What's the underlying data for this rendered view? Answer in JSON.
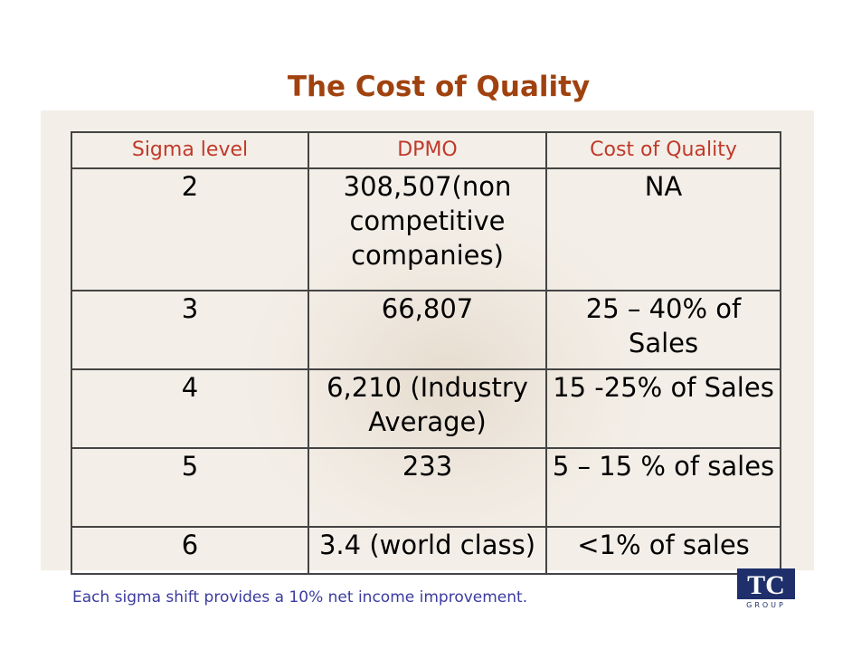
{
  "title": "The Cost of Quality",
  "table": {
    "header": [
      "Sigma level",
      "DPMO",
      "Cost of Quality"
    ],
    "rows": [
      [
        "2",
        "308,507(non competitive companies)",
        "NA"
      ],
      [
        "3",
        "66,807",
        "25 – 40% of Sales"
      ],
      [
        "4",
        "6,210 (Industry Average)",
        "15 -25% of Sales"
      ],
      [
        "5",
        "233",
        "5 – 15 % of sales"
      ],
      [
        "6",
        "3.4 (world class)",
        "<1% of sales"
      ]
    ]
  },
  "footer": "Each sigma shift provides a 10% net income improvement.",
  "logo": {
    "text": "TC",
    "subtext": "GROUP"
  }
}
